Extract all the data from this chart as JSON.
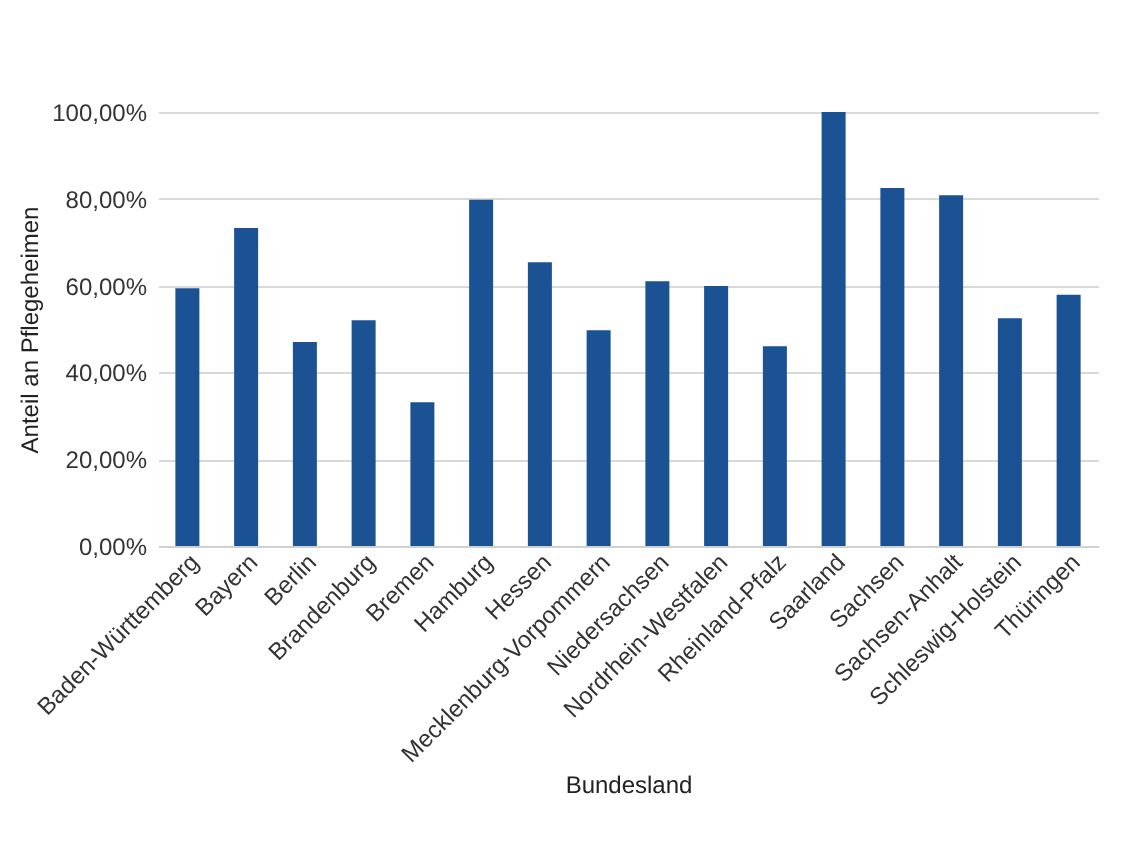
{
  "chart_data": {
    "type": "bar",
    "xlabel": "Bundesland",
    "ylabel": "Anteil an Pflegeheimen",
    "categories": [
      "Baden-Württemberg",
      "Bayern",
      "Berlin",
      "Brandenburg",
      "Bremen",
      "Hamburg",
      "Hessen",
      "Mecklenburg-Vorpommern",
      "Niedersachsen",
      "Nordrhein-Westfalen",
      "Rheinland-Pfalz",
      "Saarland",
      "Sachsen",
      "Sachsen-Anhalt",
      "Schleswig-Holstein",
      "Thüringen"
    ],
    "values": [
      59.4,
      73.3,
      47.0,
      52.0,
      33.1,
      79.8,
      65.4,
      49.7,
      61.0,
      59.9,
      46.0,
      100,
      82.5,
      80.8,
      52.5,
      57.9
    ],
    "color": "#1a5293",
    "ylim": [
      0,
      100
    ],
    "yticks": [
      {
        "value": 0,
        "label": "0,00%"
      },
      {
        "value": 20,
        "label": "20,00%"
      },
      {
        "value": 40,
        "label": "40,00%"
      },
      {
        "value": 60,
        "label": "60,00%"
      },
      {
        "value": 80,
        "label": "80,00%"
      },
      {
        "value": 100,
        "label": "100,00%"
      }
    ],
    "grid": "y"
  }
}
